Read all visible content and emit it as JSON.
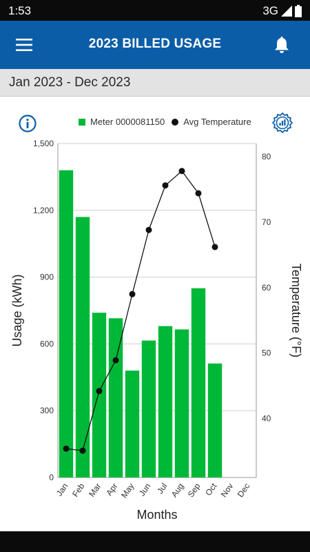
{
  "status_bar": {
    "time": "1:53",
    "network": "3G"
  },
  "app_bar": {
    "title": "2023 BILLED USAGE",
    "menu_icon": "hamburger-menu-icon",
    "bell_icon": "notification-bell-icon"
  },
  "range": {
    "label": "Jan 2023 - Dec 2023"
  },
  "legend": {
    "meter_label": "Meter 0000081150",
    "temp_label": "Avg Temperature"
  },
  "colors": {
    "app_bar": "#0b5da7",
    "bar": "#00b838",
    "line": "#111111",
    "range_bg": "#e3e3e3"
  },
  "chart_data": {
    "type": "bar",
    "categories": [
      "Jan",
      "Feb",
      "Mar",
      "Apr",
      "May",
      "Jun",
      "Jul",
      "Aug",
      "Sep",
      "Oct",
      "Nov",
      "Dec"
    ],
    "series": [
      {
        "name": "Meter 0000081150",
        "type": "bar",
        "axis": "left",
        "values": [
          1380,
          1170,
          740,
          715,
          480,
          615,
          680,
          665,
          850,
          512,
          null,
          null
        ]
      },
      {
        "name": "Avg Temperature",
        "type": "line",
        "axis": "right",
        "values": [
          35.4,
          35.1,
          44.2,
          48.9,
          59.0,
          68.8,
          75.6,
          77.8,
          74.4,
          66.2,
          null,
          null
        ]
      }
    ],
    "xlabel": "Months",
    "ylabel": "Usage (kWh)",
    "y2label": "Temperature (°F)",
    "ylim": [
      0,
      1500
    ],
    "y2lim": [
      31,
      82
    ],
    "yticks": [
      "0",
      "300",
      "600",
      "900",
      "1,200",
      "1,500"
    ],
    "ytick_values": [
      0,
      300,
      600,
      900,
      1200,
      1500
    ],
    "y2ticks": [
      "40",
      "50",
      "60",
      "70",
      "80"
    ],
    "y2tick_values": [
      40,
      50,
      60,
      70,
      80
    ],
    "grid": true,
    "legend_position": "top"
  }
}
